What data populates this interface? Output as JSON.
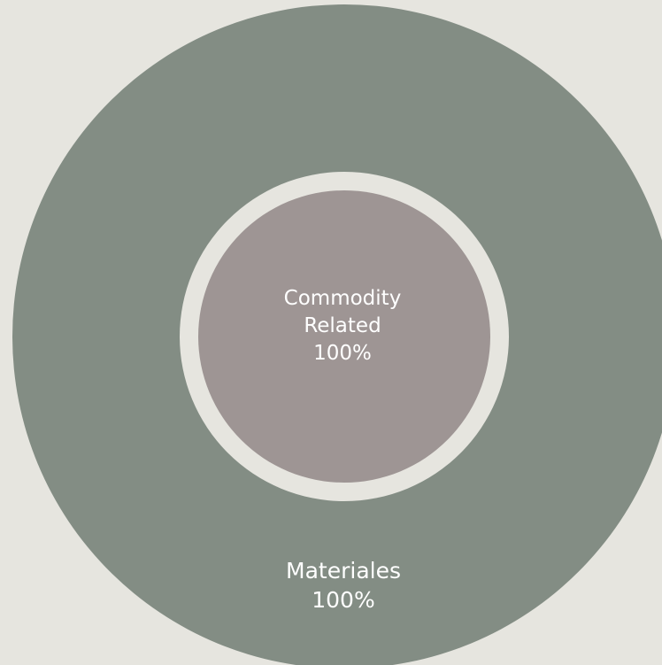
{
  "chart_data": {
    "type": "sunburst",
    "levels": [
      {
        "ring": "inner",
        "segments": [
          {
            "label_lines": [
              "Commodity",
              "Related"
            ],
            "percent_label": "100%",
            "value": 100,
            "color": "#9e9594"
          }
        ]
      },
      {
        "ring": "outer",
        "segments": [
          {
            "label_lines": [
              "Materiales"
            ],
            "percent_label": "100%",
            "value": 100,
            "color": "#838d84"
          }
        ]
      }
    ],
    "background_color": "#e6e5df",
    "separator_color": "#e6e5df"
  }
}
